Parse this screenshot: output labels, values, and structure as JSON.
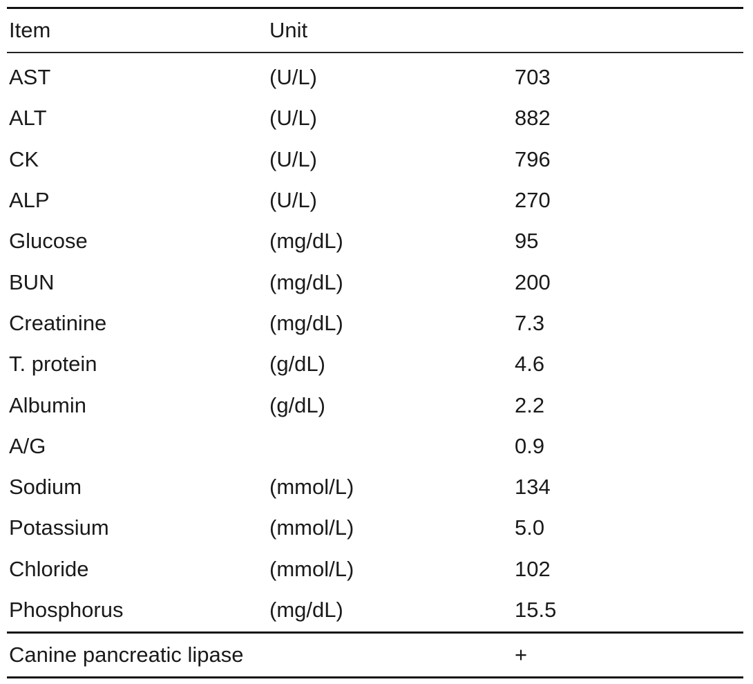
{
  "table": {
    "headers": {
      "item": "Item",
      "unit": "Unit",
      "value": ""
    },
    "rows": [
      {
        "item": "AST",
        "unit": "(U/L)",
        "value": "703"
      },
      {
        "item": "ALT",
        "unit": "(U/L)",
        "value": "882"
      },
      {
        "item": "CK",
        "unit": "(U/L)",
        "value": "796"
      },
      {
        "item": "ALP",
        "unit": "(U/L)",
        "value": "270"
      },
      {
        "item": "Glucose",
        "unit": "(mg/dL)",
        "value": "95"
      },
      {
        "item": "BUN",
        "unit": "(mg/dL)",
        "value": "200"
      },
      {
        "item": "Creatinine",
        "unit": "(mg/dL)",
        "value": "7.3"
      },
      {
        "item": "T. protein",
        "unit": "(g/dL)",
        "value": "4.6"
      },
      {
        "item": "Albumin",
        "unit": "(g/dL)",
        "value": "2.2"
      },
      {
        "item": "A/G",
        "unit": "",
        "value": "0.9"
      },
      {
        "item": "Sodium",
        "unit": "(mmol/L)",
        "value": "134"
      },
      {
        "item": "Potassium",
        "unit": "(mmol/L)",
        "value": "5.0"
      },
      {
        "item": "Chloride",
        "unit": "(mmol/L)",
        "value": "102"
      },
      {
        "item": "Phosphorus",
        "unit": "(mg/dL)",
        "value": "15.5"
      }
    ],
    "footer": {
      "item": "Canine pancreatic lipase",
      "unit": "",
      "value": "+"
    }
  }
}
